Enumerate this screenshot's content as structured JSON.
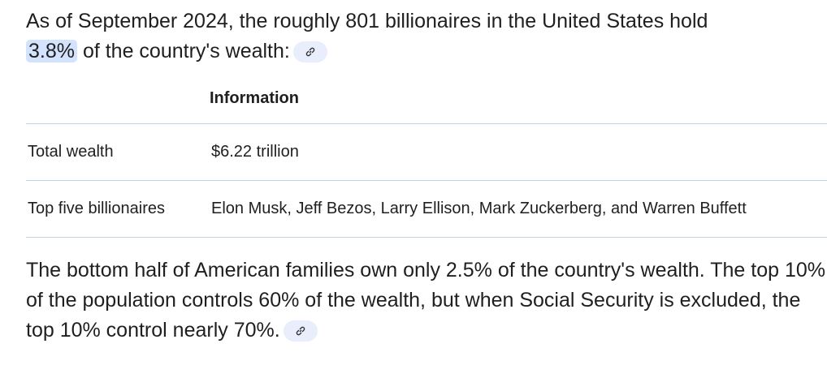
{
  "intro": {
    "before": "As of September 2024, the roughly 801 billionaires in the United States hold",
    "highlight": "3.8%",
    "after": "of the country's wealth:"
  },
  "table": {
    "headers": [
      "",
      "Information"
    ],
    "rows": [
      [
        "Total wealth",
        "$6.22 trillion"
      ],
      [
        "Top five billionaires",
        "Elon Musk, Jeff Bezos, Larry Ellison, Mark Zuckerberg, and Warren Buffett"
      ]
    ]
  },
  "outro": "The bottom half of American families own only 2.5% of the country's wealth. The top 10% of the population controls 60% of the wealth, but when Social Security is excluded, the top 10% control nearly 70%."
}
